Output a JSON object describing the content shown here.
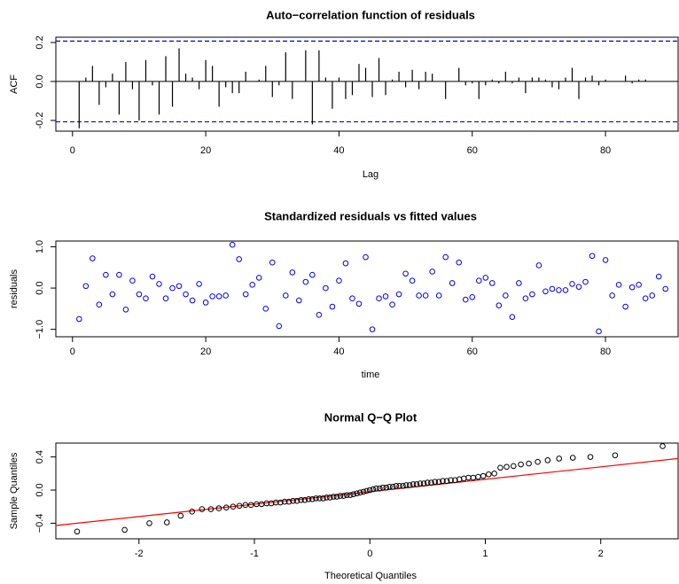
{
  "chart_data": [
    {
      "type": "acf",
      "title": "Auto−correlation function of residuals",
      "xlabel": "Lag",
      "ylabel": "ACF",
      "color": "#000000",
      "ci": [
        -0.207,
        0.207
      ],
      "ci_color": "#0000ff",
      "x": [
        1,
        2,
        3,
        4,
        5,
        6,
        7,
        8,
        9,
        10,
        11,
        12,
        13,
        14,
        15,
        16,
        17,
        18,
        19,
        20,
        21,
        22,
        23,
        24,
        25,
        26,
        27,
        28,
        29,
        30,
        31,
        32,
        33,
        34,
        35,
        36,
        37,
        38,
        39,
        40,
        41,
        42,
        43,
        44,
        45,
        46,
        47,
        48,
        49,
        50,
        51,
        52,
        53,
        54,
        55,
        56,
        57,
        58,
        59,
        60,
        61,
        62,
        63,
        64,
        65,
        66,
        67,
        68,
        69,
        70,
        71,
        72,
        73,
        74,
        75,
        76,
        77,
        78,
        79,
        80,
        81,
        82,
        83,
        84,
        85,
        86,
        87,
        88,
        89
      ],
      "values": [
        -0.24,
        0.02,
        0.08,
        -0.12,
        -0.03,
        0.04,
        -0.17,
        0.1,
        -0.04,
        -0.2,
        0.11,
        -0.02,
        -0.17,
        0.13,
        -0.13,
        0.17,
        0.04,
        0.02,
        -0.04,
        0.11,
        0.08,
        -0.13,
        -0.03,
        -0.06,
        -0.06,
        0.05,
        0.0,
        0.01,
        0.08,
        -0.08,
        -0.02,
        0.15,
        -0.09,
        0.0,
        0.16,
        -0.22,
        0.16,
        0.02,
        -0.14,
        0.02,
        -0.09,
        -0.07,
        0.09,
        0.07,
        -0.08,
        0.12,
        -0.07,
        0.01,
        0.05,
        -0.03,
        0.06,
        -0.04,
        0.05,
        0.04,
        0.0,
        -0.09,
        0.0,
        0.07,
        -0.02,
        -0.01,
        -0.09,
        -0.02,
        0.01,
        -0.01,
        0.05,
        -0.01,
        0.02,
        -0.06,
        0.02,
        0.02,
        0.01,
        -0.03,
        -0.04,
        0.02,
        0.07,
        -0.09,
        0.02,
        0.03,
        -0.02,
        0.01,
        0.0,
        0.0,
        0.03,
        -0.01,
        0.01,
        0.01,
        0.0,
        0.0,
        0.0
      ],
      "xlim": [
        -2.5,
        90.9
      ],
      "ylim": [
        -0.255,
        0.227
      ],
      "xticks": [
        0,
        20,
        40,
        60,
        80
      ],
      "yticks": [
        -0.2,
        {
          "value": 0,
          "label": "0.0"
        },
        0.2
      ]
    },
    {
      "type": "scatter",
      "title": "Standardized residuals vs fitted values",
      "xlabel": "time",
      "ylabel": "residuals",
      "color": "#0000ff",
      "x": [
        1,
        2,
        3,
        4,
        5,
        6,
        7,
        8,
        9,
        10,
        11,
        12,
        13,
        14,
        15,
        16,
        17,
        18,
        19,
        20,
        21,
        22,
        23,
        24,
        25,
        26,
        27,
        28,
        29,
        30,
        31,
        32,
        33,
        34,
        35,
        36,
        37,
        38,
        39,
        40,
        41,
        42,
        43,
        44,
        45,
        46,
        47,
        48,
        49,
        50,
        51,
        52,
        53,
        54,
        55,
        56,
        57,
        58,
        59,
        60,
        61,
        62,
        63,
        64,
        65,
        66,
        67,
        68,
        69,
        70,
        71,
        72,
        73,
        74,
        75,
        76,
        77,
        78,
        79,
        80,
        81,
        82,
        83,
        84,
        85,
        86,
        87,
        88,
        89
      ],
      "values": [
        -0.75,
        0.05,
        0.72,
        -0.4,
        0.32,
        -0.15,
        0.32,
        -0.52,
        0.18,
        -0.15,
        -0.25,
        0.28,
        0.1,
        -0.25,
        0.0,
        0.05,
        -0.15,
        -0.3,
        0.1,
        -0.35,
        -0.2,
        -0.2,
        -0.18,
        1.05,
        0.7,
        -0.15,
        0.08,
        0.25,
        -0.5,
        0.62,
        -0.92,
        -0.18,
        0.38,
        -0.3,
        0.15,
        0.32,
        -0.65,
        0.0,
        -0.45,
        0.18,
        0.6,
        -0.25,
        -0.38,
        0.75,
        -1.0,
        -0.25,
        -0.2,
        -0.4,
        -0.15,
        0.35,
        0.18,
        -0.18,
        -0.18,
        0.4,
        -0.18,
        0.75,
        0.12,
        0.62,
        -0.28,
        -0.22,
        0.18,
        0.25,
        0.12,
        -0.42,
        -0.18,
        -0.7,
        0.12,
        -0.25,
        -0.15,
        0.55,
        -0.08,
        -0.02,
        -0.05,
        -0.05,
        0.1,
        0.03,
        0.15,
        0.78,
        -1.05,
        0.68,
        -0.18,
        0.08,
        -0.45,
        0.02,
        0.08,
        -0.25,
        -0.18,
        0.28,
        -0.02
      ],
      "xlim": [
        -2.5,
        90.9
      ],
      "ylim": [
        -1.18,
        1.14
      ],
      "xticks": [
        0,
        20,
        40,
        60,
        80
      ],
      "yticks": [
        {
          "value": -1,
          "label": "−1.0"
        },
        {
          "value": 0,
          "label": "0.0"
        },
        {
          "value": 1,
          "label": "1.0"
        }
      ]
    },
    {
      "type": "qq",
      "title": "Normal Q−Q Plot",
      "xlabel": "Theoretical Quantiles",
      "ylabel": "Sample Quantiles",
      "color": "#000000",
      "qqline": {
        "intercept": -0.02,
        "slope": 0.15,
        "color": "#ff0000"
      },
      "x": [
        -2.536,
        -2.124,
        -1.91,
        -1.758,
        -1.639,
        -1.54,
        -1.454,
        -1.377,
        -1.308,
        -1.244,
        -1.185,
        -1.13,
        -1.078,
        -1.029,
        -0.982,
        -0.938,
        -0.895,
        -0.854,
        -0.814,
        -0.775,
        -0.738,
        -0.701,
        -0.666,
        -0.631,
        -0.597,
        -0.564,
        -0.531,
        -0.499,
        -0.467,
        -0.436,
        -0.405,
        -0.375,
        -0.345,
        -0.315,
        -0.286,
        -0.256,
        -0.227,
        -0.199,
        -0.17,
        -0.142,
        -0.113,
        -0.085,
        -0.056,
        -0.028,
        0,
        0.028,
        0.056,
        0.085,
        0.113,
        0.142,
        0.17,
        0.199,
        0.227,
        0.256,
        0.286,
        0.315,
        0.345,
        0.375,
        0.405,
        0.436,
        0.467,
        0.499,
        0.531,
        0.564,
        0.597,
        0.631,
        0.666,
        0.701,
        0.738,
        0.775,
        0.814,
        0.854,
        0.895,
        0.938,
        0.982,
        1.029,
        1.078,
        1.13,
        1.185,
        1.244,
        1.308,
        1.377,
        1.454,
        1.54,
        1.639,
        1.758,
        1.91,
        2.124,
        2.536
      ],
      "values": [
        -0.5,
        -0.48,
        -0.4,
        -0.39,
        -0.31,
        -0.26,
        -0.23,
        -0.23,
        -0.22,
        -0.21,
        -0.2,
        -0.19,
        -0.18,
        -0.18,
        -0.17,
        -0.17,
        -0.16,
        -0.16,
        -0.15,
        -0.15,
        -0.14,
        -0.14,
        -0.13,
        -0.13,
        -0.12,
        -0.12,
        -0.11,
        -0.11,
        -0.1,
        -0.1,
        -0.1,
        -0.09,
        -0.09,
        -0.08,
        -0.08,
        -0.07,
        -0.07,
        -0.06,
        -0.06,
        -0.05,
        -0.04,
        -0.03,
        -0.02,
        -0.01,
        0.0,
        0.01,
        0.02,
        0.02,
        0.03,
        0.03,
        0.04,
        0.04,
        0.05,
        0.05,
        0.05,
        0.06,
        0.06,
        0.07,
        0.07,
        0.08,
        0.08,
        0.09,
        0.09,
        0.1,
        0.1,
        0.11,
        0.11,
        0.12,
        0.12,
        0.13,
        0.14,
        0.15,
        0.15,
        0.16,
        0.17,
        0.19,
        0.2,
        0.27,
        0.28,
        0.29,
        0.31,
        0.32,
        0.34,
        0.36,
        0.38,
        0.39,
        0.4,
        0.42,
        0.53
      ],
      "xlim": [
        -2.72,
        2.67
      ],
      "ylim": [
        -0.588,
        0.567
      ],
      "xticks": [
        -2,
        -1,
        0,
        1,
        2
      ],
      "yticks": [
        {
          "value": -0.4,
          "label": "−0.4"
        },
        {
          "value": 0,
          "label": "0.0"
        },
        0.4
      ]
    }
  ]
}
